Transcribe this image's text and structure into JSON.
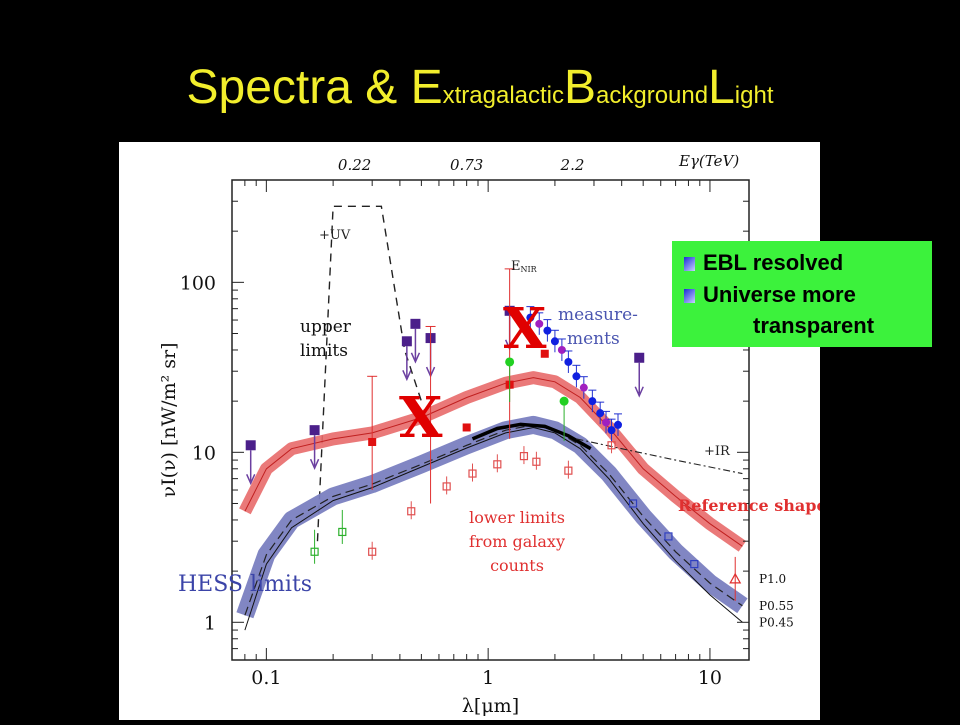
{
  "slide": {
    "title_prefix": "Spectra & ",
    "title_E": "E",
    "title_xtragalactic": "xtragalactic",
    "title_B": "B",
    "title_ackground": "ackground",
    "title_L": "L",
    "title_ight": "ight"
  },
  "legend": {
    "item1": "EBL resolved",
    "item2": "Universe more",
    "item3": "transparent"
  },
  "annotations": {
    "upper_limits_1": "upper",
    "upper_limits_2": "limits",
    "measurements_1": "measure-",
    "measurements_2": "ments",
    "lower_limits_1": "lower limits",
    "lower_limits_2": "from galaxy",
    "lower_limits_3": "counts",
    "reference_shape": "Reference shape",
    "hess_limits": "HESS limits",
    "uv_label": "+UV",
    "ir_label": "+IR",
    "enir_label": "E",
    "enir_sub": "NIR",
    "x_mark": "X"
  },
  "colors": {
    "title": "#f2ee2c",
    "legend_bg": "#3cf23c",
    "red_band": "#e86a6a",
    "blue_band": "#7a7fc0",
    "reference_text": "#e03030",
    "hess_text": "#3b44a8",
    "measure_text": "#4a55b0",
    "x_mark": "#e00000"
  },
  "chart_data": {
    "type": "line",
    "xlabel": "λ[μm]",
    "ylabel": "νI(ν) [nW/m² sr]",
    "top_axis_label": "Eγ(TeV)",
    "x_scale": "log",
    "y_scale": "log",
    "xlim": [
      0.07,
      15
    ],
    "ylim": [
      0.6,
      400
    ],
    "x_ticks": [
      0.1,
      1,
      10
    ],
    "x_tick_labels": [
      "0.1",
      "1",
      "10"
    ],
    "y_ticks": [
      1,
      10,
      100
    ],
    "y_tick_labels": [
      "1",
      "10",
      "100"
    ],
    "top_ticks": [
      {
        "label": "0.22",
        "lambda": 0.25
      },
      {
        "label": "0.73",
        "lambda": 0.8
      },
      {
        "label": "2.2",
        "lambda": 2.4
      }
    ],
    "series": [
      {
        "name": "P1.0",
        "role": "red_band",
        "x": [
          0.08,
          0.1,
          0.13,
          0.2,
          0.3,
          0.5,
          0.8,
          1.2,
          1.6,
          2.0,
          2.6,
          3.5,
          5,
          7,
          10,
          14
        ],
        "y": [
          4.5,
          8,
          10.5,
          12,
          13,
          16,
          21,
          25.5,
          27.5,
          26,
          21,
          14,
          8,
          5.5,
          3.8,
          2.8
        ]
      },
      {
        "name": "P0.55",
        "role": "blue_band",
        "x": [
          0.08,
          0.1,
          0.13,
          0.2,
          0.3,
          0.5,
          0.8,
          1.2,
          1.6,
          2.0,
          2.6,
          3.5,
          5,
          7,
          10,
          14
        ],
        "y": [
          1.1,
          2.5,
          4,
          5.5,
          6.5,
          8.5,
          11,
          13.5,
          14.5,
          13.5,
          11,
          7.5,
          4.2,
          2.6,
          1.7,
          1.25
        ]
      },
      {
        "name": "P0.45",
        "role": "thin_line",
        "x": [
          0.08,
          0.1,
          0.13,
          0.2,
          0.3,
          0.5,
          0.8,
          1.2,
          1.6,
          2.0,
          2.6,
          3.5,
          5,
          7,
          10,
          14
        ],
        "y": [
          0.9,
          2.2,
          3.6,
          5.2,
          6.2,
          8.2,
          10.6,
          13,
          14,
          13,
          10.5,
          7,
          3.8,
          2.3,
          1.45,
          1.0
        ]
      },
      {
        "name": "",
        "role": "black_arc",
        "x": [
          0.85,
          1.1,
          1.4,
          1.8,
          2.3,
          2.9
        ],
        "y": [
          12,
          13.8,
          14.6,
          14.2,
          12.5,
          10.5
        ]
      },
      {
        "name": "",
        "role": "ir_dashdot",
        "x": [
          2.5,
          4,
          7,
          10,
          14
        ],
        "y": [
          12,
          10.5,
          9,
          8.2,
          7.5
        ]
      }
    ],
    "upper_limits_purple": [
      {
        "x": 0.085,
        "y": 11
      },
      {
        "x": 0.165,
        "y": 13.5
      },
      {
        "x": 0.43,
        "y": 45
      },
      {
        "x": 0.47,
        "y": 57
      },
      {
        "x": 0.55,
        "y": 47
      },
      {
        "x": 1.25,
        "y": 68
      },
      {
        "x": 4.8,
        "y": 36
      }
    ],
    "red_points": [
      {
        "x": 0.3,
        "y": 11.5,
        "lo": 6,
        "hi": 28
      },
      {
        "x": 0.55,
        "y": 13,
        "lo": 5,
        "hi": 55
      },
      {
        "x": 0.8,
        "y": 14
      },
      {
        "x": 1.25,
        "y": 25,
        "lo": 12,
        "hi": 120
      },
      {
        "x": 1.8,
        "y": 38
      }
    ],
    "open_red_points": [
      {
        "x": 0.3,
        "y": 2.6
      },
      {
        "x": 0.45,
        "y": 4.5
      },
      {
        "x": 0.65,
        "y": 6.3
      },
      {
        "x": 0.85,
        "y": 7.5
      },
      {
        "x": 1.1,
        "y": 8.5
      },
      {
        "x": 1.45,
        "y": 9.5
      },
      {
        "x": 1.65,
        "y": 8.8
      },
      {
        "x": 2.3,
        "y": 7.8
      },
      {
        "x": 3.6,
        "y": 11
      }
    ],
    "open_green_points": [
      {
        "x": 0.165,
        "y": 2.6
      },
      {
        "x": 0.22,
        "y": 3.4
      }
    ],
    "green_points": [
      {
        "x": 1.25,
        "y": 34
      },
      {
        "x": 2.2,
        "y": 20
      }
    ],
    "blue_points": [
      {
        "x": 1.55,
        "y": 62
      },
      {
        "x": 1.7,
        "y": 57
      },
      {
        "x": 1.85,
        "y": 52
      },
      {
        "x": 2.0,
        "y": 45
      },
      {
        "x": 2.15,
        "y": 40
      },
      {
        "x": 2.3,
        "y": 34
      },
      {
        "x": 2.5,
        "y": 28
      },
      {
        "x": 2.7,
        "y": 24
      },
      {
        "x": 2.95,
        "y": 20
      },
      {
        "x": 3.2,
        "y": 17
      },
      {
        "x": 3.4,
        "y": 15
      },
      {
        "x": 3.6,
        "y": 13.5
      },
      {
        "x": 3.85,
        "y": 14.5
      }
    ],
    "open_blue_points": [
      {
        "x": 4.5,
        "y": 5
      },
      {
        "x": 6.5,
        "y": 3.2
      },
      {
        "x": 8.5,
        "y": 2.2
      }
    ],
    "open_triangle_points": [
      {
        "x": 13,
        "y": 1.8
      }
    ]
  }
}
